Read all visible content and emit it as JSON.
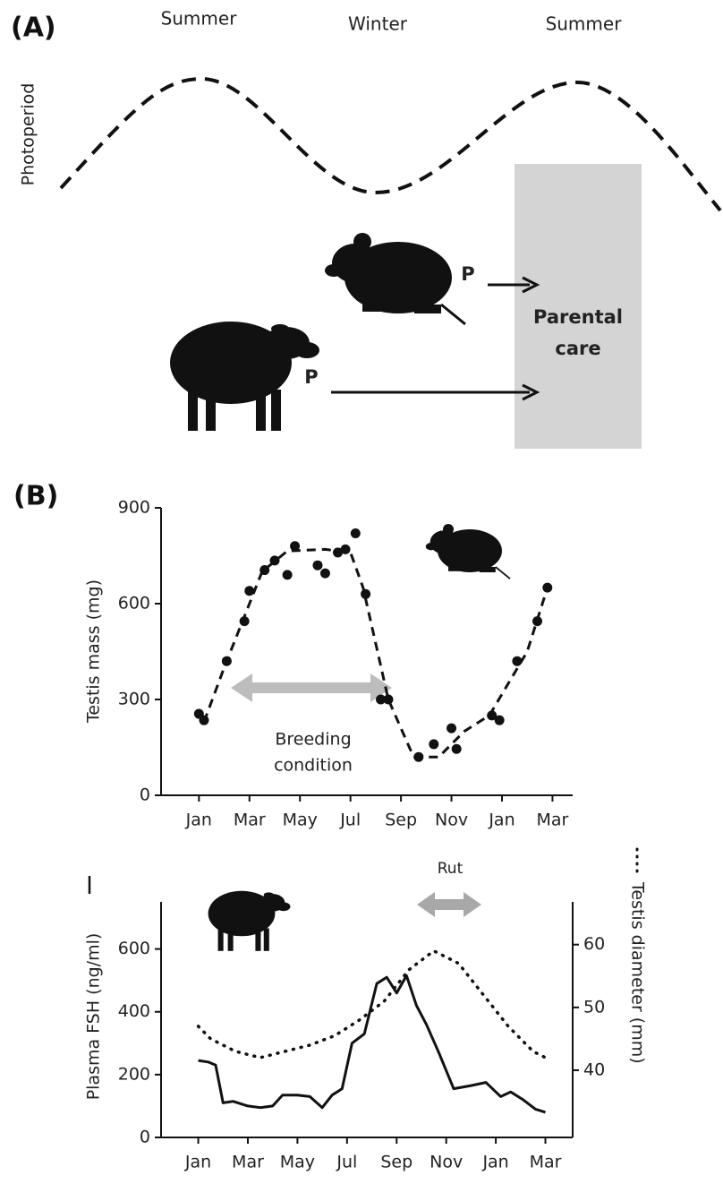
{
  "panel_a": {
    "label": "(A)",
    "seasons": [
      "Summer",
      "Winter",
      "Summer"
    ],
    "y_label": "Photoperiod",
    "markers": [
      "P",
      "P"
    ],
    "box_label": [
      "Parental",
      "care"
    ]
  },
  "chart_data": [
    {
      "type": "scatter",
      "panel_label": "(B)",
      "y_label": "Testis mass (mg)",
      "annotation": [
        "Breeding",
        "condition"
      ],
      "xlim": [
        -1.5,
        14.8
      ],
      "xticks": [
        {
          "value": 0,
          "label": "Jan"
        },
        {
          "value": 2,
          "label": "Mar"
        },
        {
          "value": 4,
          "label": "May"
        },
        {
          "value": 6,
          "label": "Jul"
        },
        {
          "value": 8,
          "label": "Sep"
        },
        {
          "value": 10,
          "label": "Nov"
        },
        {
          "value": 12,
          "label": "Jan"
        },
        {
          "value": 14,
          "label": "Mar"
        }
      ],
      "ylim": [
        0,
        900
      ],
      "yticks": [
        0,
        300,
        600,
        900
      ],
      "series": [
        {
          "color": "#111111",
          "x": [
            0.0,
            0.2,
            1.1,
            1.8,
            2.0,
            2.6,
            3.0,
            3.5,
            3.8,
            4.7,
            5.0,
            5.5,
            5.8,
            6.2,
            6.6,
            7.2,
            7.5,
            8.7,
            9.3,
            10.0,
            10.2,
            11.6,
            11.9,
            12.6,
            13.4,
            13.8
          ],
          "values": [
            255,
            235,
            420,
            545,
            640,
            705,
            735,
            690,
            780,
            720,
            695,
            760,
            770,
            820,
            630,
            300,
            300,
            120,
            160,
            210,
            145,
            250,
            235,
            420,
            545,
            650
          ]
        },
        {
          "color": "#111111",
          "style": "dashed",
          "x": [
            0.2,
            1.0,
            2.5,
            3.5,
            5.0,
            6.0,
            6.5,
            7.5,
            8.5,
            9.5,
            10.5,
            11.5,
            13.0,
            13.8
          ],
          "values": [
            230,
            400,
            700,
            765,
            770,
            760,
            650,
            300,
            120,
            120,
            200,
            250,
            450,
            650
          ]
        }
      ]
    },
    {
      "type": "line",
      "y_label": "Plasma FSH (ng/ml)",
      "y2_label": "Testis diameter (mm)",
      "annotation": "Rut",
      "xlim": [
        -1.5,
        15.1
      ],
      "xticks": [
        {
          "value": 0,
          "label": "Jan"
        },
        {
          "value": 2,
          "label": "Mar"
        },
        {
          "value": 4,
          "label": "May"
        },
        {
          "value": 6,
          "label": "Jul"
        },
        {
          "value": 8,
          "label": "Sep"
        },
        {
          "value": 10,
          "label": "Nov"
        },
        {
          "value": 12,
          "label": "Jan"
        },
        {
          "value": 14,
          "label": "Mar"
        }
      ],
      "ylim": [
        0,
        750
      ],
      "yticks": [
        0,
        200,
        400,
        600
      ],
      "y2lim": [
        29.3,
        66.8
      ],
      "y2ticks": [
        40,
        50,
        60
      ],
      "series": [
        {
          "color": "#111111",
          "style": "solid",
          "x": [
            0,
            0.4,
            0.7,
            1.0,
            1.4,
            2.0,
            2.5,
            3.0,
            3.4,
            4.0,
            4.5,
            5.0,
            5.4,
            5.8,
            6.2,
            6.7,
            7.2,
            7.6,
            8.0,
            8.4,
            8.8,
            9.2,
            9.7,
            10.3,
            11.0,
            11.6,
            12.2,
            12.6,
            13.1,
            13.6,
            14.0
          ],
          "values": [
            245,
            240,
            230,
            110,
            115,
            100,
            95,
            100,
            135,
            135,
            130,
            95,
            135,
            155,
            300,
            330,
            490,
            510,
            460,
            515,
            420,
            360,
            270,
            155,
            165,
            175,
            130,
            145,
            120,
            90,
            80
          ]
        },
        {
          "color": "#111111",
          "style": "dotted",
          "axis": "y2",
          "x": [
            0,
            0.5,
            1.5,
            2.5,
            3.5,
            4.5,
            5.5,
            6.5,
            7.5,
            8.5,
            9.5,
            10.5,
            11.5,
            12.5,
            13.5,
            14.0
          ],
          "values": [
            47,
            45,
            43,
            42,
            43,
            44,
            45.5,
            48,
            51,
            56,
            59,
            57,
            52,
            47,
            43,
            42
          ]
        }
      ]
    }
  ]
}
